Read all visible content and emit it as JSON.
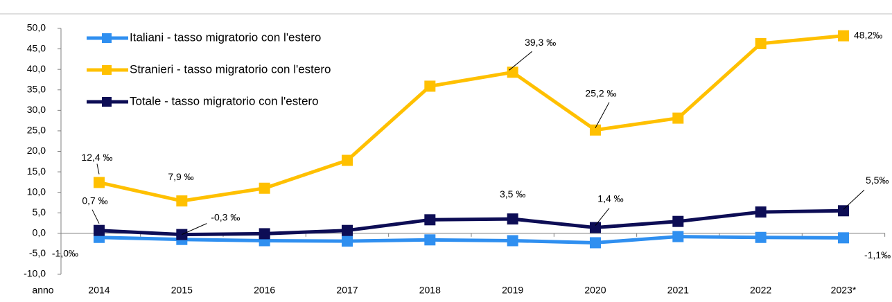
{
  "chart_data": {
    "type": "line",
    "x_label": "anno",
    "categories": [
      "2014",
      "2015",
      "2016",
      "2017",
      "2018",
      "2019",
      "2020",
      "2021",
      "2022",
      "2023*"
    ],
    "series": [
      {
        "name": "Italiani - tasso migratorio con l'estero",
        "color": "#2f8ff0",
        "values": [
          -1.0,
          -1.5,
          -1.8,
          -1.9,
          -1.6,
          -1.8,
          -2.3,
          -0.8,
          -1.0,
          -1.1
        ],
        "value_labels": [
          "-1,0‰",
          null,
          null,
          null,
          null,
          null,
          null,
          null,
          null,
          "-1,1‰"
        ]
      },
      {
        "name": "Stranieri - tasso migratorio con l'estero",
        "color": "#ffc000",
        "values": [
          12.4,
          7.9,
          11.0,
          17.8,
          35.9,
          39.3,
          25.2,
          28.1,
          46.3,
          48.2
        ],
        "value_labels": [
          "12,4 ‰",
          "7,9 ‰",
          null,
          null,
          null,
          "39,3 ‰",
          "25,2 ‰",
          null,
          null,
          "48,2‰"
        ]
      },
      {
        "name": "Totale - tasso migratorio con l'estero",
        "color": "#0d0d55",
        "values": [
          0.7,
          -0.3,
          -0.1,
          0.7,
          3.3,
          3.5,
          1.4,
          2.9,
          5.2,
          5.5
        ],
        "value_labels": [
          "0,7 ‰",
          "-0,3 ‰",
          null,
          null,
          null,
          "3,5 ‰",
          "1,4 ‰",
          null,
          null,
          "5,5‰"
        ]
      }
    ],
    "ylim": [
      -10,
      50
    ],
    "yticks": [
      {
        "value": -10,
        "label": "-10,0"
      },
      {
        "value": -5,
        "label": "-5,0"
      },
      {
        "value": 0,
        "label": "0,0"
      },
      {
        "value": 5,
        "label": "5,0"
      },
      {
        "value": 10,
        "label": "10,0"
      },
      {
        "value": 15,
        "label": "15,0"
      },
      {
        "value": 20,
        "label": "20,0"
      },
      {
        "value": 25,
        "label": "25,0"
      },
      {
        "value": 30,
        "label": "30,0"
      },
      {
        "value": 35,
        "label": "35,0"
      },
      {
        "value": 40,
        "label": "40,0"
      },
      {
        "value": 45,
        "label": "45,0"
      },
      {
        "value": 50,
        "label": "50,0"
      }
    ],
    "legend": "upper left"
  }
}
